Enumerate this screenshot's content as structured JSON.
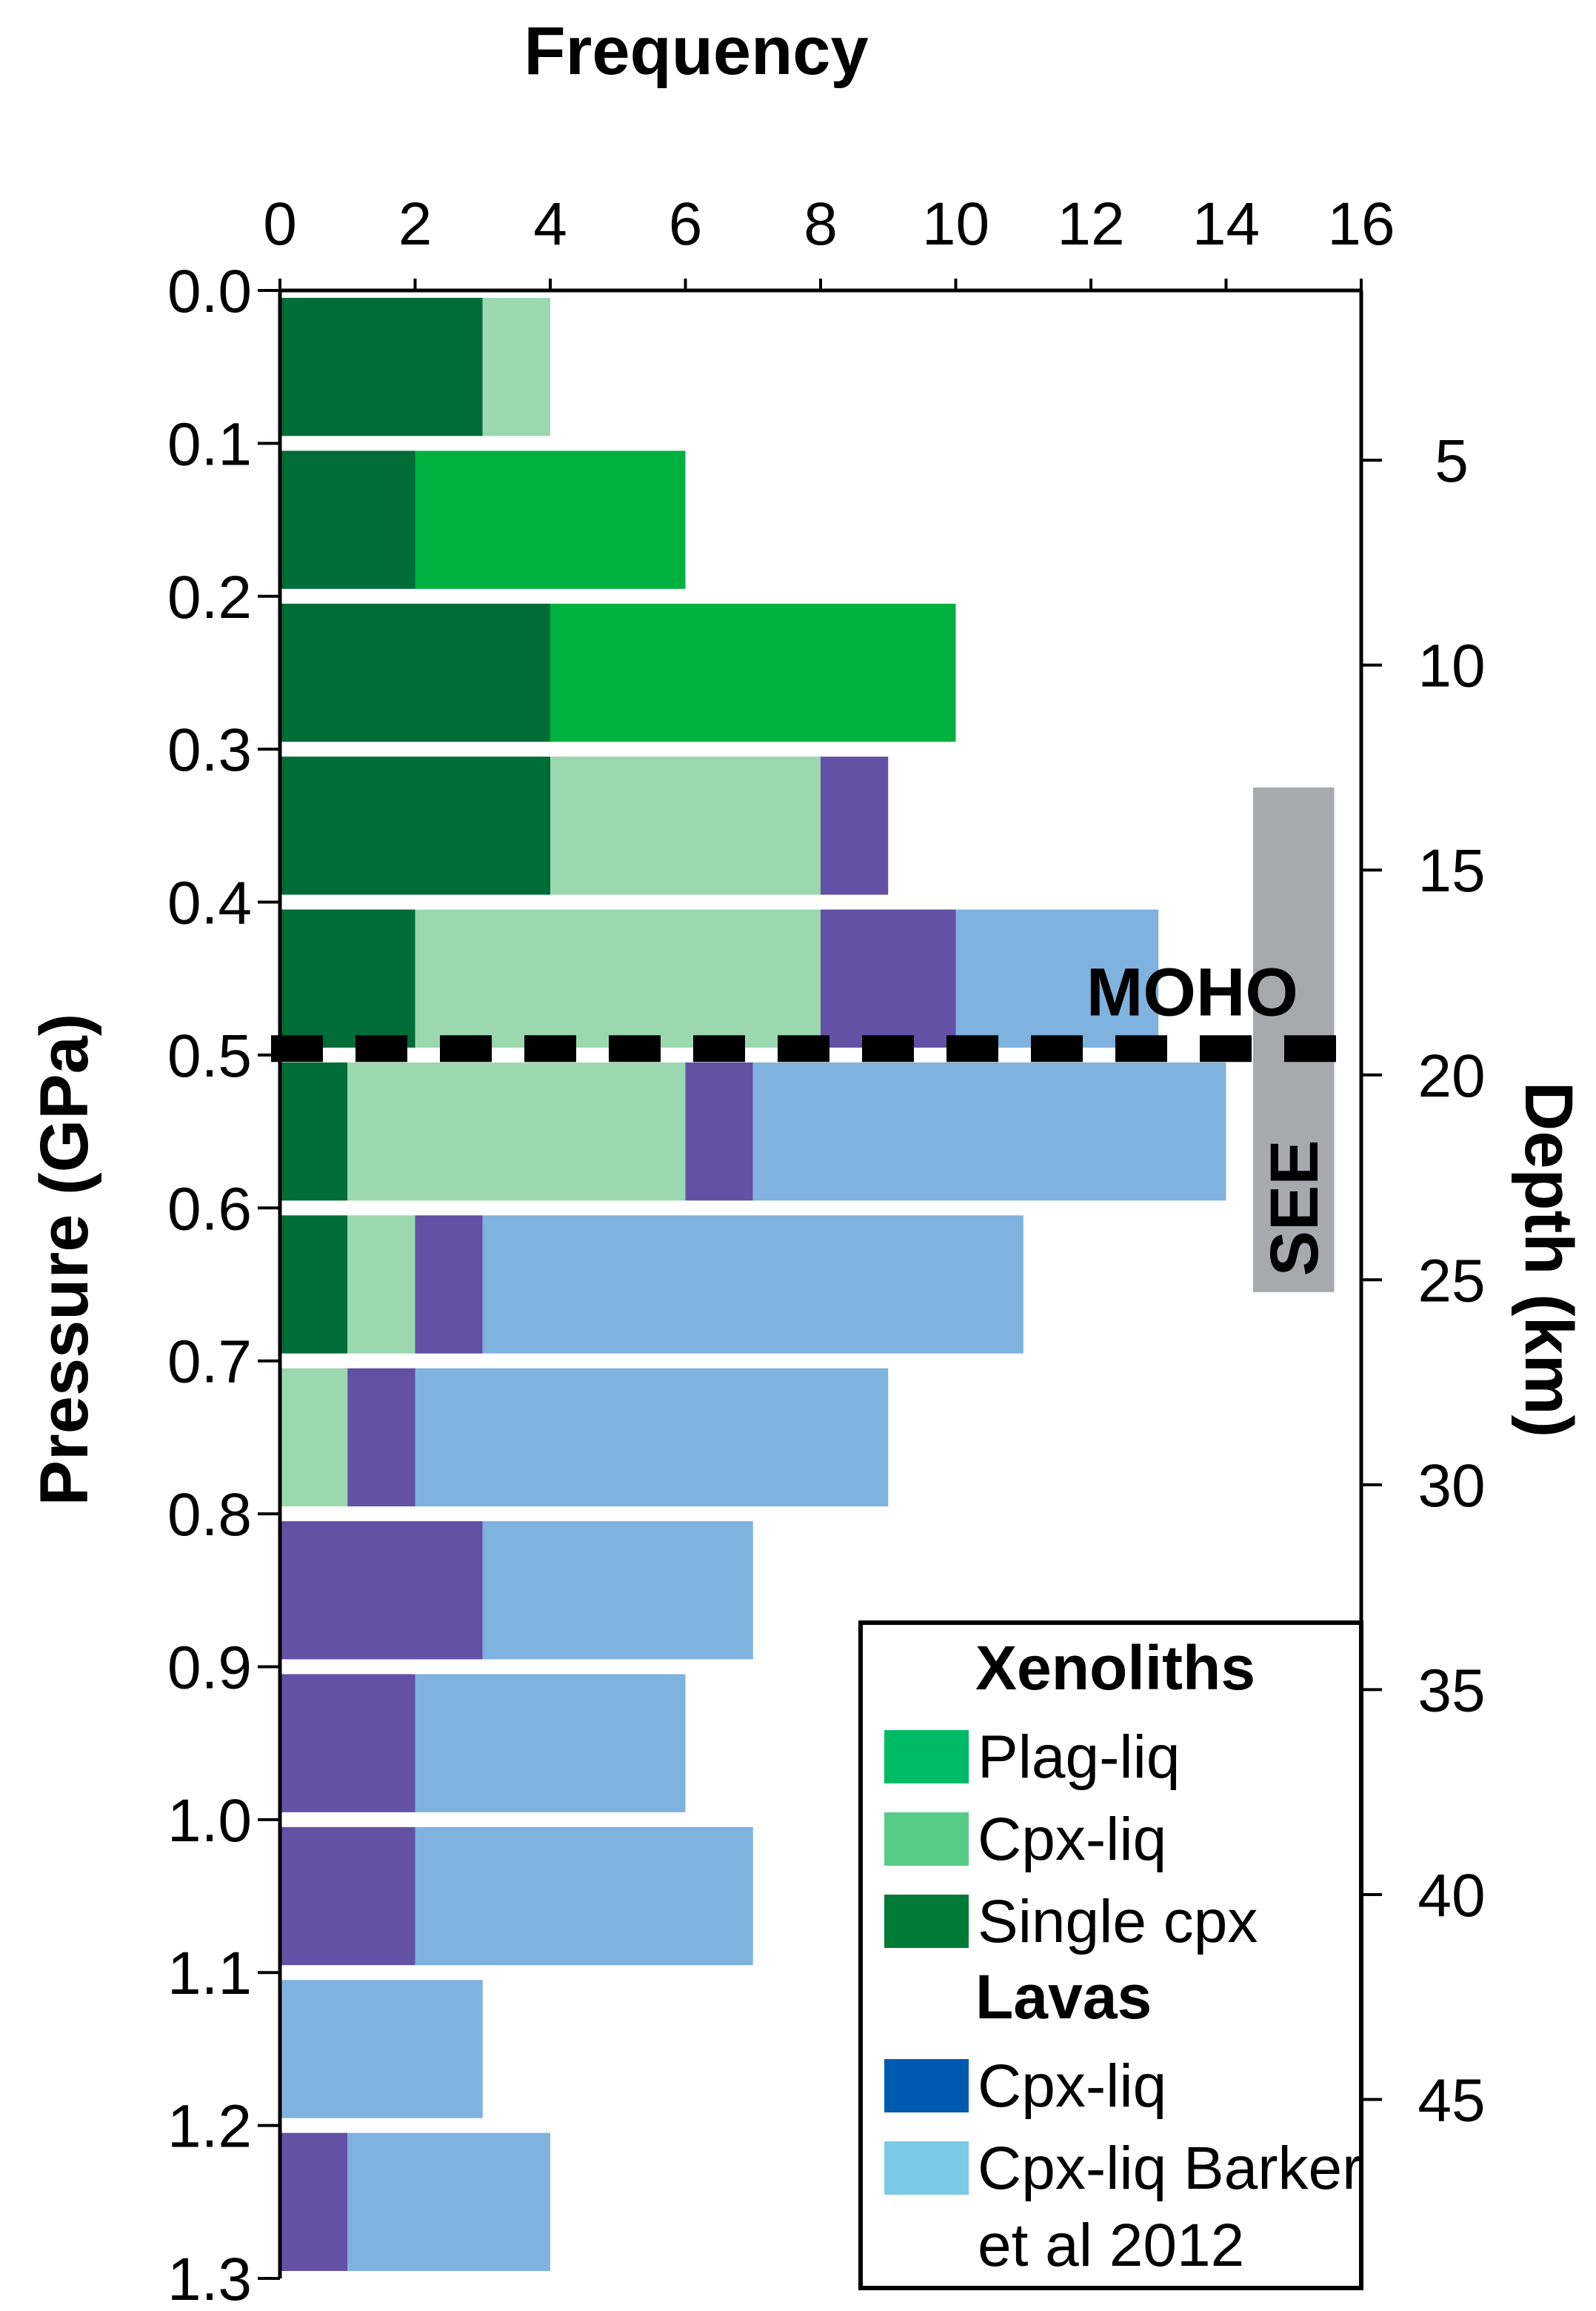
{
  "chart_data": {
    "type": "bar",
    "orientation": "horizontal",
    "stacked": true,
    "title": "",
    "xlabel": "Frequency",
    "ylabel": "Pressure (GPa)",
    "y2label": "Depth (km)",
    "xlim": [
      0,
      16
    ],
    "xticks": [
      "0",
      "2",
      "4",
      "6",
      "8",
      "10",
      "12",
      "14",
      "16"
    ],
    "ylim": [
      0.0,
      1.3
    ],
    "yticks": [
      "0.0",
      "0.1",
      "0.2",
      "0.3",
      "0.4",
      "0.5",
      "0.6",
      "0.7",
      "0.8",
      "0.9",
      "1.0",
      "1.1",
      "1.2",
      "1.3"
    ],
    "y2ticks": [
      {
        "label": "5",
        "pressure": 0.111
      },
      {
        "label": "10",
        "pressure": 0.245
      },
      {
        "label": "15",
        "pressure": 0.379
      },
      {
        "label": "20",
        "pressure": 0.513
      },
      {
        "label": "25",
        "pressure": 0.647
      },
      {
        "label": "30",
        "pressure": 0.781
      },
      {
        "label": "35",
        "pressure": 0.915
      },
      {
        "label": "40",
        "pressure": 1.049
      },
      {
        "label": "45",
        "pressure": 1.183
      }
    ],
    "categories": [
      "0.0-0.1",
      "0.1-0.2",
      "0.2-0.3",
      "0.3-0.4",
      "0.4-0.5",
      "0.5-0.6",
      "0.6-0.7",
      "0.7-0.8",
      "0.8-0.9",
      "0.9-1.0",
      "1.0-1.1",
      "1.1-1.2",
      "1.2-1.3"
    ],
    "bins": [
      [
        0.0,
        0.1
      ],
      [
        0.1,
        0.2
      ],
      [
        0.2,
        0.3
      ],
      [
        0.3,
        0.4
      ],
      [
        0.4,
        0.5
      ],
      [
        0.5,
        0.6
      ],
      [
        0.6,
        0.7
      ],
      [
        0.7,
        0.8
      ],
      [
        0.8,
        0.9
      ],
      [
        0.9,
        1.0
      ],
      [
        1.0,
        1.1
      ],
      [
        1.1,
        1.2
      ],
      [
        1.2,
        1.3
      ]
    ],
    "series": [
      {
        "name": "Single cpx",
        "color": "#006c37",
        "values": [
          3,
          2,
          4,
          4,
          2,
          1,
          1,
          0,
          0,
          0,
          0,
          0,
          0
        ]
      },
      {
        "name": "Plag-liq",
        "color": "#00b140",
        "values": [
          0,
          4,
          6,
          0,
          0,
          0,
          0,
          0,
          0,
          0,
          0,
          0,
          0
        ]
      },
      {
        "name": "Cpx-liq (xenoliths)",
        "color": "#9bd8b0",
        "values": [
          1,
          0,
          0,
          4,
          6,
          5,
          1,
          1,
          0,
          0,
          0,
          0,
          0
        ]
      },
      {
        "name": "Cpx-liq (lavas)",
        "color": "#6251a5",
        "values": [
          0,
          0,
          0,
          1,
          2,
          1,
          1,
          1,
          3,
          2,
          2,
          0,
          1
        ]
      },
      {
        "name": "Cpx-liq Barker et al 2012",
        "color": "#7fb2de",
        "values": [
          0,
          0,
          0,
          0,
          3,
          7,
          8,
          7,
          4,
          4,
          5,
          3,
          3
        ]
      }
    ],
    "annotations": {
      "moho": {
        "label": "MOHO",
        "pressure": 0.49
      },
      "see": {
        "label": "SEE",
        "pressure_range": [
          0.325,
          0.655
        ],
        "x_range": [
          14.4,
          15.6
        ],
        "color": "#a7a9ac"
      }
    },
    "legend": {
      "placement": "bottom-right",
      "groups": [
        {
          "heading": "Xenoliths",
          "items": [
            {
              "label": "Plag-liq",
              "color": "#00bb66"
            },
            {
              "label": "Cpx-liq",
              "color": "#55cc88"
            },
            {
              "label": "Single cpx",
              "color": "#007a37"
            }
          ]
        },
        {
          "heading": "Lavas",
          "items": [
            {
              "label": "Cpx-liq",
              "color": "#005bb0"
            },
            {
              "label": "Cpx-liq Barker",
              "label_line2": "et al 2012",
              "color": "#7ccbe6"
            }
          ]
        }
      ]
    }
  }
}
